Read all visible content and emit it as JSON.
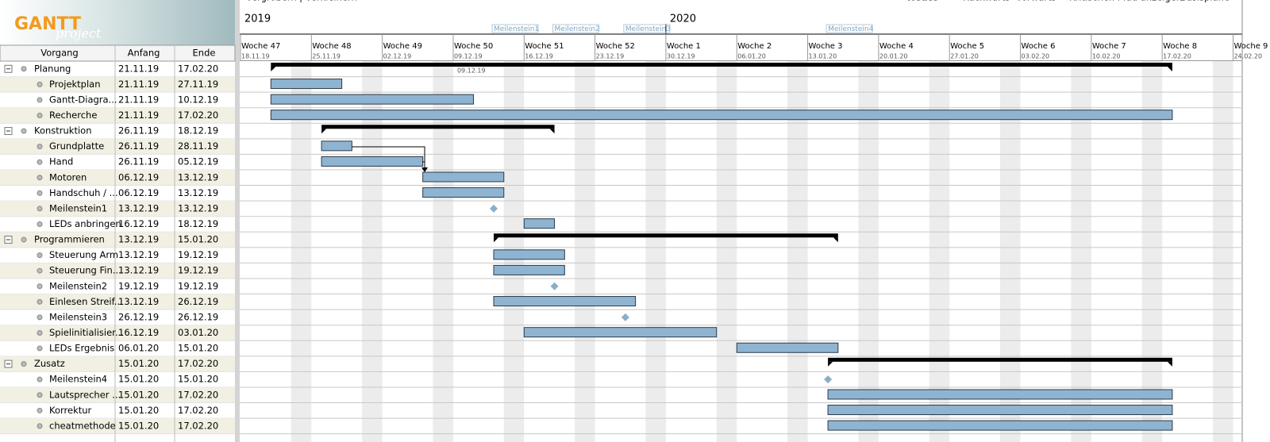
{
  "toolbar": [
    "Vergrößern | Verkleinern",
    "Heute",
    "Rückwärts",
    "Vorwärts",
    "Kritischen Pfad anzeigen",
    "Basispläne"
  ],
  "logo": {
    "title": "GANTT",
    "subtitle": "project"
  },
  "table": {
    "columns": [
      "Vorgang",
      "Anfang",
      "Ende"
    ],
    "groups": [
      {
        "name": "Planung",
        "start": "21.11.19",
        "end": "17.02.20",
        "tasks": [
          {
            "name": "Projektplan",
            "start": "21.11.19",
            "end": "27.11.19"
          },
          {
            "name": "Gantt-Diagra...",
            "start": "21.11.19",
            "end": "10.12.19"
          },
          {
            "name": "Recherche",
            "start": "21.11.19",
            "end": "17.02.20"
          }
        ]
      },
      {
        "name": "Konstruktion",
        "start": "26.11.19",
        "end": "18.12.19",
        "tasks": [
          {
            "name": "Grundplatte",
            "start": "26.11.19",
            "end": "28.11.19"
          },
          {
            "name": "Hand",
            "start": "26.11.19",
            "end": "05.12.19"
          },
          {
            "name": "Motoren",
            "start": "06.12.19",
            "end": "13.12.19"
          },
          {
            "name": "Handschuh / ...",
            "start": "06.12.19",
            "end": "13.12.19"
          },
          {
            "name": "Meilenstein1",
            "start": "13.12.19",
            "end": "13.12.19"
          },
          {
            "name": "LEDs anbringen",
            "start": "16.12.19",
            "end": "18.12.19"
          }
        ]
      },
      {
        "name": "Programmieren",
        "start": "13.12.19",
        "end": "15.01.20",
        "tasks": [
          {
            "name": "Steuerung Arm",
            "start": "13.12.19",
            "end": "19.12.19"
          },
          {
            "name": "Steuerung Fin...",
            "start": "13.12.19",
            "end": "19.12.19"
          },
          {
            "name": "Meilenstein2",
            "start": "19.12.19",
            "end": "19.12.19"
          },
          {
            "name": "Einlesen Streif...",
            "start": "13.12.19",
            "end": "26.12.19"
          },
          {
            "name": "Meilenstein3",
            "start": "26.12.19",
            "end": "26.12.19"
          },
          {
            "name": "Spielinitialisier...",
            "start": "16.12.19",
            "end": "03.01.20"
          },
          {
            "name": "LEDs Ergebnis",
            "start": "06.01.20",
            "end": "15.01.20"
          }
        ]
      },
      {
        "name": "Zusatz",
        "start": "15.01.20",
        "end": "17.02.20",
        "tasks": [
          {
            "name": "Meilenstein4",
            "start": "15.01.20",
            "end": "15.01.20"
          },
          {
            "name": "Lautsprecher ...",
            "start": "15.01.20",
            "end": "17.02.20"
          },
          {
            "name": "Korrektur",
            "start": "15.01.20",
            "end": "17.02.20"
          },
          {
            "name": "cheatmethode",
            "start": "15.01.20",
            "end": "17.02.20"
          }
        ]
      }
    ]
  },
  "timeline": {
    "years": [
      {
        "label": "2019",
        "date": "18.11.19"
      },
      {
        "label": "2020",
        "date": "30.12.19"
      }
    ],
    "today": "09.12.19",
    "weeks": [
      {
        "label": "Woche 47",
        "date": "18.11.19"
      },
      {
        "label": "Woche 48",
        "date": "25.11.19"
      },
      {
        "label": "Woche 49",
        "date": "02.12.19"
      },
      {
        "label": "Woche 50",
        "date": "09.12.19"
      },
      {
        "label": "Woche 51",
        "date": "16.12.19"
      },
      {
        "label": "Woche 52",
        "date": "23.12.19"
      },
      {
        "label": "Woche 1",
        "date": "30.12.19"
      },
      {
        "label": "Woche 2",
        "date": "06.01.20"
      },
      {
        "label": "Woche 3",
        "date": "13.01.20"
      },
      {
        "label": "Woche 4",
        "date": "20.01.20"
      },
      {
        "label": "Woche 5",
        "date": "27.01.20"
      },
      {
        "label": "Woche 6",
        "date": "03.02.20"
      },
      {
        "label": "Woche 7",
        "date": "10.02.20"
      },
      {
        "label": "Woche 8",
        "date": "17.02.20"
      },
      {
        "label": "Woche 9",
        "date": "24.02.20"
      }
    ]
  }
}
